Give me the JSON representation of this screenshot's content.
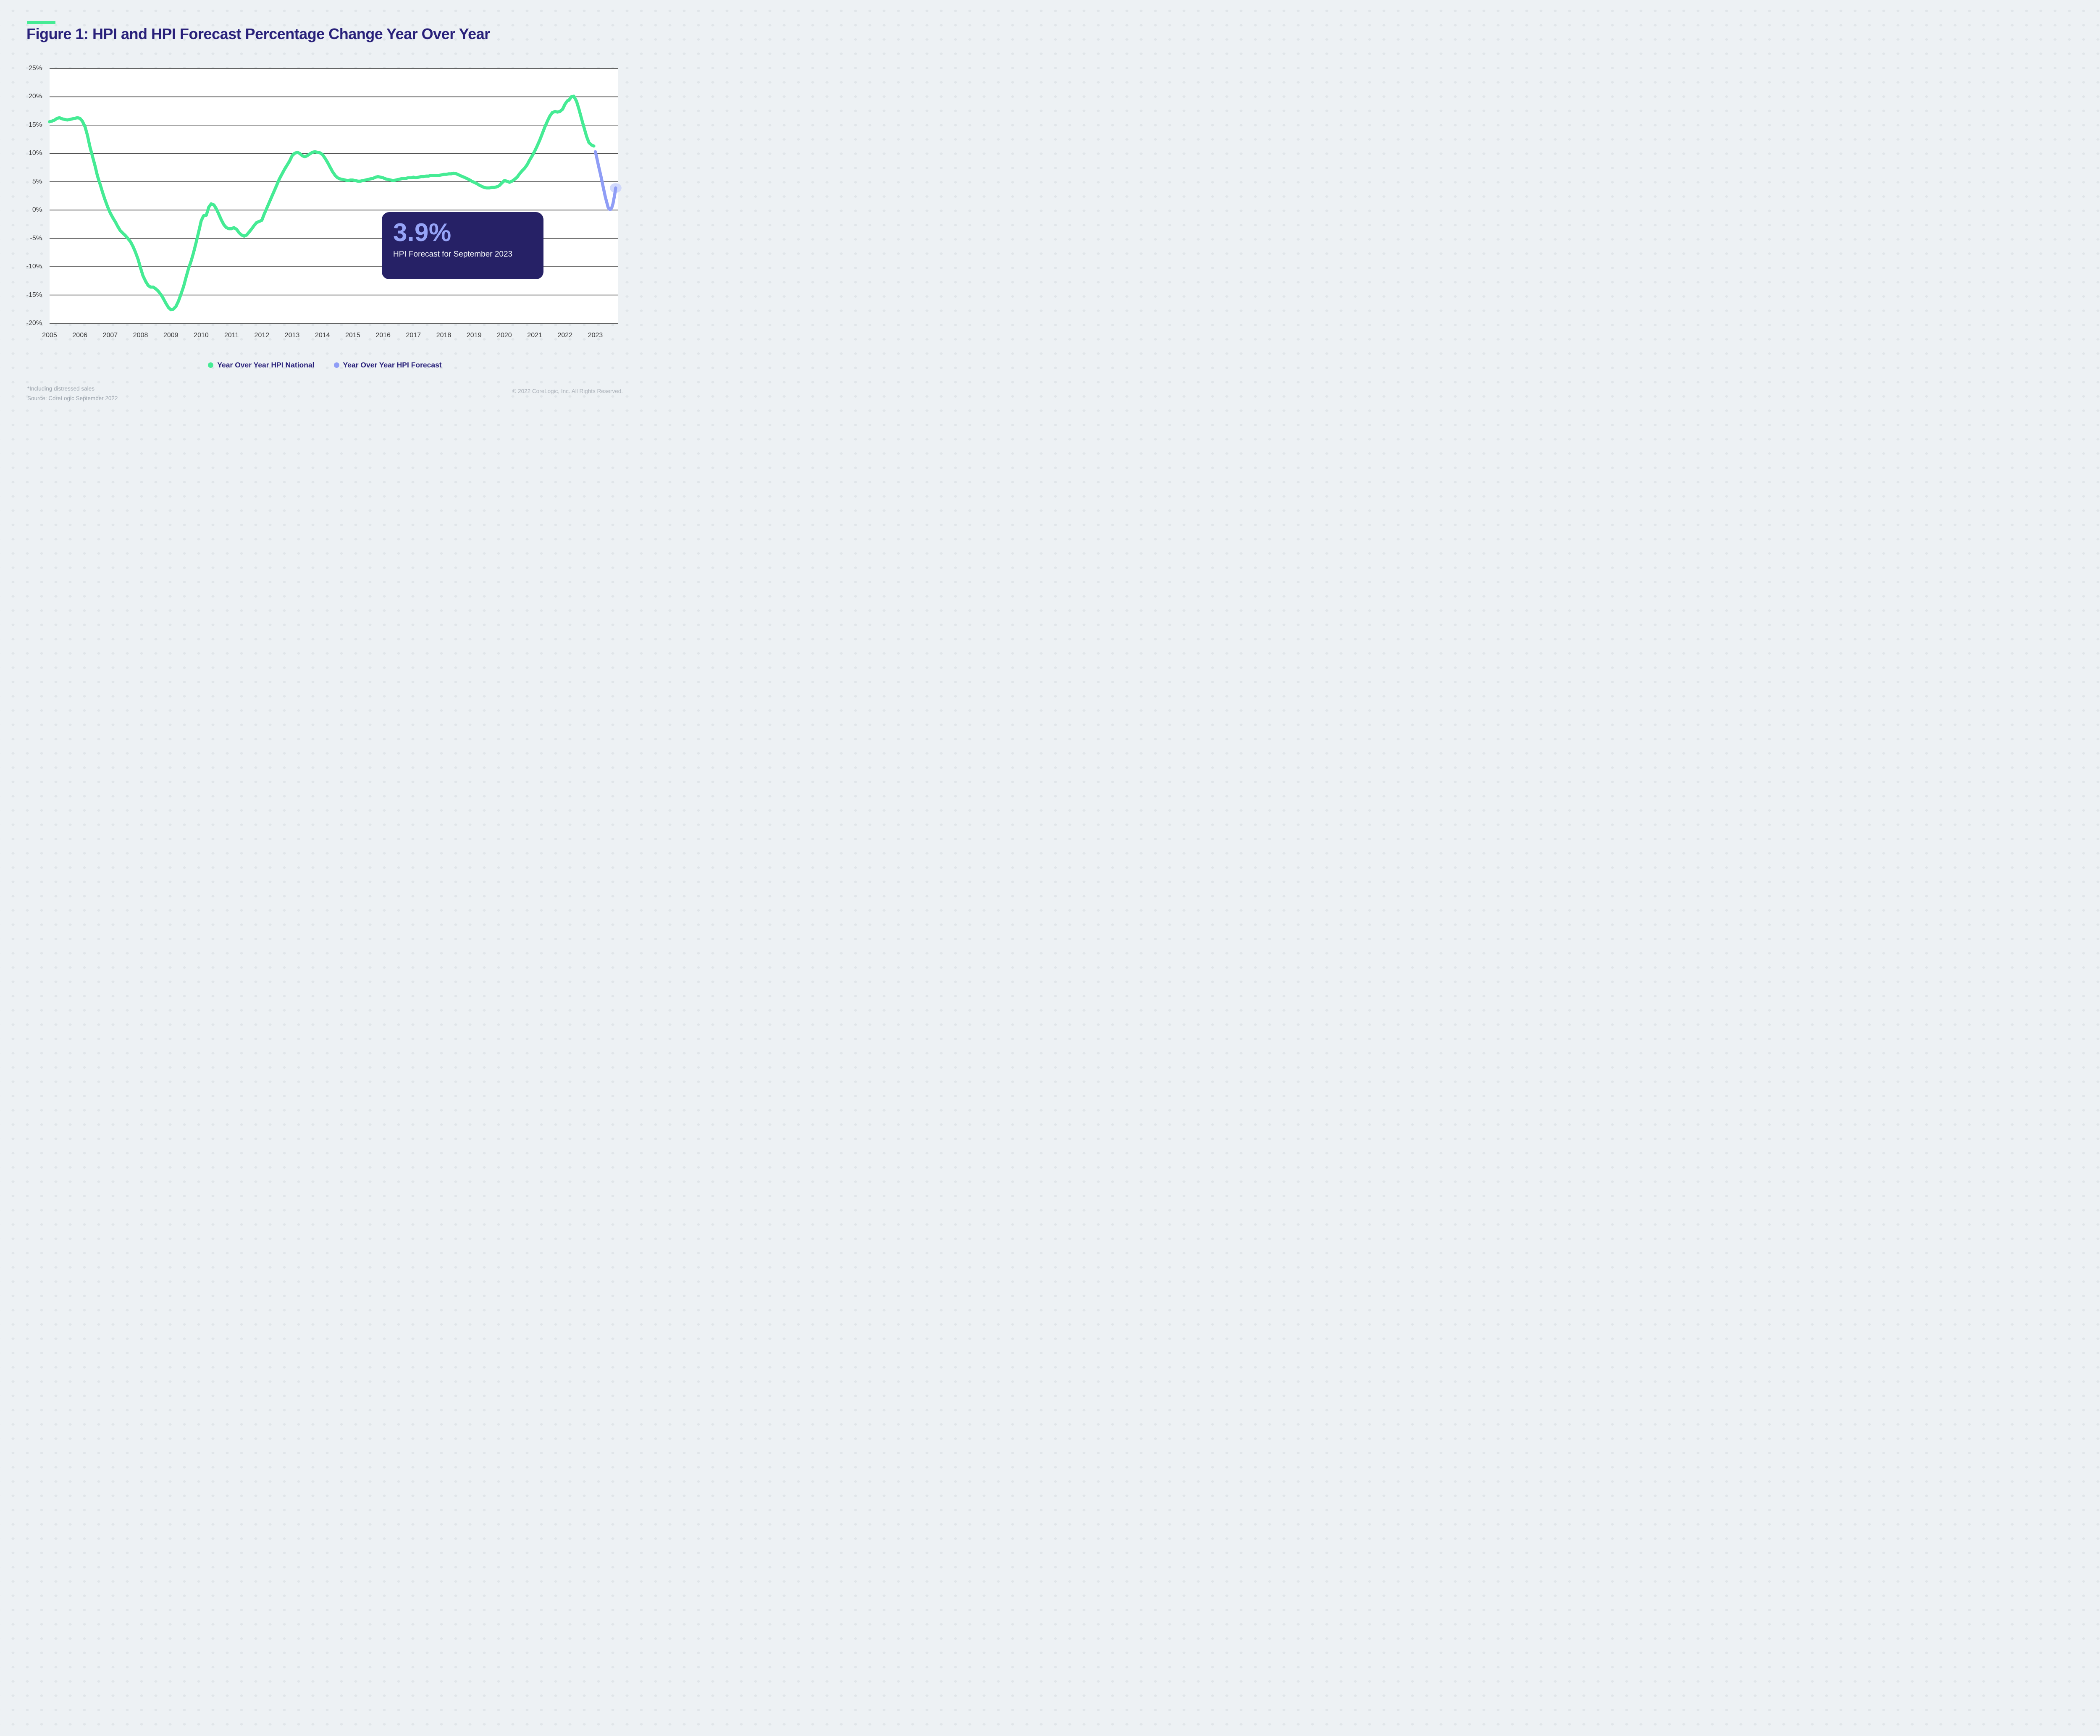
{
  "page": {
    "title": "Figure 1: HPI and HPI Forecast Percentage Change Year Over Year",
    "footnote_line1": "*Including distressed sales",
    "footnote_line2": "Source: CoreLogic September 2022",
    "copyright": "© 2022 CoreLogic, Inc. All Rights Reserved."
  },
  "callout": {
    "value": "3.9%",
    "label": "HPI Forecast for September 2023"
  },
  "legend": [
    {
      "label": "Year Over Year HPI National",
      "color": "#45EB94"
    },
    {
      "label": "Year Over Year HPI Forecast",
      "color": "#8F9DF6"
    }
  ],
  "colors": {
    "accent_green": "#45EB94",
    "forecast_purple": "#8F9DF6",
    "halo": "#C9D2FB",
    "navy": "#29217A",
    "callout_bg": "#262166",
    "callout_value": "#96A4F7",
    "gridline": "#4F4F4F",
    "axis_text": "#3B3B3C",
    "page_bg": "#EDF1F4",
    "dot": "#E0E5E9",
    "plot_bg": "#FFFFFF",
    "footnote": "#9BA3AC",
    "copyright": "#ABB1B9"
  },
  "chart_data": {
    "type": "line",
    "title": "Figure 1: HPI and HPI Forecast Percentage Change Year Over Year",
    "xlabel": "",
    "ylabel": "",
    "xlim": [
      2005,
      2023.755
    ],
    "ylim": [
      -20,
      25
    ],
    "grid": "horizontal",
    "legend_position": "bottom",
    "y_ticks": [
      {
        "v": 25,
        "label": "25%"
      },
      {
        "v": 20,
        "label": "20%"
      },
      {
        "v": 15,
        "label": "15%"
      },
      {
        "v": 10,
        "label": "10%"
      },
      {
        "v": 5,
        "label": "5%"
      },
      {
        "v": 0,
        "label": "0%"
      },
      {
        "v": -5,
        "label": "-5%"
      },
      {
        "v": -10,
        "label": "-10%"
      },
      {
        "v": -15,
        "label": "-15%"
      },
      {
        "v": -20,
        "label": "-20%"
      }
    ],
    "x_ticks": [
      {
        "year": 2005,
        "label": "2005"
      },
      {
        "year": 2006,
        "label": "2006"
      },
      {
        "year": 2007,
        "label": "2007"
      },
      {
        "year": 2008,
        "label": "2008"
      },
      {
        "year": 2009,
        "label": "2009"
      },
      {
        "year": 2010,
        "label": "2010"
      },
      {
        "year": 2011,
        "label": "2011"
      },
      {
        "year": 2012,
        "label": "2012"
      },
      {
        "year": 2013,
        "label": "2013"
      },
      {
        "year": 2014,
        "label": "2014"
      },
      {
        "year": 2015,
        "label": "2015"
      },
      {
        "year": 2016,
        "label": "2016"
      },
      {
        "year": 2017,
        "label": "2017"
      },
      {
        "year": 2018,
        "label": "2018"
      },
      {
        "year": 2019,
        "label": "2019"
      },
      {
        "year": 2020,
        "label": "2020"
      },
      {
        "year": 2021,
        "label": "2021"
      },
      {
        "year": 2022,
        "label": "2022"
      },
      {
        "year": 2023,
        "label": "2023"
      }
    ],
    "annotation": {
      "value": "3.9%",
      "label": "HPI Forecast for September 2023"
    },
    "series": [
      {
        "name": "Year Over Year HPI National",
        "color": "#45EB94",
        "end_marker": false,
        "points": [
          [
            2005.0,
            15.6
          ],
          [
            2005.08,
            15.7
          ],
          [
            2005.17,
            15.9
          ],
          [
            2005.25,
            16.2
          ],
          [
            2005.33,
            16.3
          ],
          [
            2005.42,
            16.1
          ],
          [
            2005.5,
            16.0
          ],
          [
            2005.58,
            15.9
          ],
          [
            2005.67,
            16.0
          ],
          [
            2005.75,
            16.1
          ],
          [
            2005.83,
            16.2
          ],
          [
            2005.92,
            16.3
          ],
          [
            2006.0,
            16.2
          ],
          [
            2006.08,
            15.7
          ],
          [
            2006.17,
            14.7
          ],
          [
            2006.25,
            13.2
          ],
          [
            2006.33,
            11.2
          ],
          [
            2006.42,
            9.4
          ],
          [
            2006.5,
            7.8
          ],
          [
            2006.58,
            6.0
          ],
          [
            2006.67,
            4.5
          ],
          [
            2006.75,
            3.1
          ],
          [
            2006.83,
            1.8
          ],
          [
            2006.92,
            0.5
          ],
          [
            2007.0,
            -0.5
          ],
          [
            2007.08,
            -1.3
          ],
          [
            2007.17,
            -2.1
          ],
          [
            2007.25,
            -2.9
          ],
          [
            2007.33,
            -3.6
          ],
          [
            2007.42,
            -4.1
          ],
          [
            2007.5,
            -4.5
          ],
          [
            2007.58,
            -5.0
          ],
          [
            2007.67,
            -5.6
          ],
          [
            2007.75,
            -6.4
          ],
          [
            2007.83,
            -7.4
          ],
          [
            2007.92,
            -8.7
          ],
          [
            2008.0,
            -10.2
          ],
          [
            2008.08,
            -11.6
          ],
          [
            2008.17,
            -12.6
          ],
          [
            2008.25,
            -13.3
          ],
          [
            2008.33,
            -13.6
          ],
          [
            2008.42,
            -13.6
          ],
          [
            2008.5,
            -13.9
          ],
          [
            2008.58,
            -14.3
          ],
          [
            2008.67,
            -14.9
          ],
          [
            2008.75,
            -15.6
          ],
          [
            2008.83,
            -16.4
          ],
          [
            2008.92,
            -17.2
          ],
          [
            2009.0,
            -17.6
          ],
          [
            2009.08,
            -17.5
          ],
          [
            2009.17,
            -17.0
          ],
          [
            2009.25,
            -16.1
          ],
          [
            2009.33,
            -14.9
          ],
          [
            2009.42,
            -13.5
          ],
          [
            2009.5,
            -11.9
          ],
          [
            2009.58,
            -10.4
          ],
          [
            2009.67,
            -9.0
          ],
          [
            2009.75,
            -7.5
          ],
          [
            2009.83,
            -5.8
          ],
          [
            2009.92,
            -3.8
          ],
          [
            2010.0,
            -1.9
          ],
          [
            2010.08,
            -1.0
          ],
          [
            2010.17,
            -0.9
          ],
          [
            2010.25,
            0.5
          ],
          [
            2010.33,
            1.1
          ],
          [
            2010.42,
            0.9
          ],
          [
            2010.5,
            0.2
          ],
          [
            2010.58,
            -0.7
          ],
          [
            2010.67,
            -1.8
          ],
          [
            2010.75,
            -2.6
          ],
          [
            2010.83,
            -3.1
          ],
          [
            2010.92,
            -3.3
          ],
          [
            2011.0,
            -3.3
          ],
          [
            2011.08,
            -3.1
          ],
          [
            2011.17,
            -3.4
          ],
          [
            2011.25,
            -4.0
          ],
          [
            2011.33,
            -4.4
          ],
          [
            2011.42,
            -4.6
          ],
          [
            2011.5,
            -4.4
          ],
          [
            2011.58,
            -3.9
          ],
          [
            2011.67,
            -3.3
          ],
          [
            2011.75,
            -2.7
          ],
          [
            2011.83,
            -2.2
          ],
          [
            2011.92,
            -2.0
          ],
          [
            2012.0,
            -1.8
          ],
          [
            2012.08,
            -0.7
          ],
          [
            2012.17,
            0.4
          ],
          [
            2012.25,
            1.4
          ],
          [
            2012.33,
            2.4
          ],
          [
            2012.42,
            3.5
          ],
          [
            2012.5,
            4.5
          ],
          [
            2012.58,
            5.5
          ],
          [
            2012.67,
            6.4
          ],
          [
            2012.75,
            7.2
          ],
          [
            2012.83,
            7.9
          ],
          [
            2012.92,
            8.7
          ],
          [
            2013.0,
            9.6
          ],
          [
            2013.08,
            10.0
          ],
          [
            2013.17,
            10.2
          ],
          [
            2013.25,
            10.0
          ],
          [
            2013.33,
            9.6
          ],
          [
            2013.42,
            9.4
          ],
          [
            2013.5,
            9.6
          ],
          [
            2013.58,
            9.9
          ],
          [
            2013.67,
            10.2
          ],
          [
            2013.75,
            10.3
          ],
          [
            2013.83,
            10.2
          ],
          [
            2013.92,
            10.1
          ],
          [
            2014.0,
            9.8
          ],
          [
            2014.08,
            9.2
          ],
          [
            2014.17,
            8.4
          ],
          [
            2014.25,
            7.6
          ],
          [
            2014.33,
            6.8
          ],
          [
            2014.42,
            6.1
          ],
          [
            2014.5,
            5.7
          ],
          [
            2014.58,
            5.5
          ],
          [
            2014.67,
            5.4
          ],
          [
            2014.75,
            5.3
          ],
          [
            2014.83,
            5.2
          ],
          [
            2014.92,
            5.3
          ],
          [
            2015.0,
            5.3
          ],
          [
            2015.08,
            5.2
          ],
          [
            2015.17,
            5.1
          ],
          [
            2015.25,
            5.1
          ],
          [
            2015.33,
            5.2
          ],
          [
            2015.42,
            5.3
          ],
          [
            2015.5,
            5.4
          ],
          [
            2015.58,
            5.5
          ],
          [
            2015.67,
            5.6
          ],
          [
            2015.75,
            5.8
          ],
          [
            2015.83,
            5.9
          ],
          [
            2015.92,
            5.8
          ],
          [
            2016.0,
            5.7
          ],
          [
            2016.08,
            5.5
          ],
          [
            2016.17,
            5.4
          ],
          [
            2016.25,
            5.3
          ],
          [
            2016.33,
            5.2
          ],
          [
            2016.42,
            5.3
          ],
          [
            2016.5,
            5.4
          ],
          [
            2016.58,
            5.5
          ],
          [
            2016.67,
            5.6
          ],
          [
            2016.75,
            5.6
          ],
          [
            2016.83,
            5.7
          ],
          [
            2016.92,
            5.7
          ],
          [
            2017.0,
            5.8
          ],
          [
            2017.08,
            5.7
          ],
          [
            2017.17,
            5.8
          ],
          [
            2017.25,
            5.9
          ],
          [
            2017.33,
            5.9
          ],
          [
            2017.42,
            6.0
          ],
          [
            2017.5,
            6.0
          ],
          [
            2017.58,
            6.1
          ],
          [
            2017.67,
            6.1
          ],
          [
            2017.75,
            6.1
          ],
          [
            2017.83,
            6.1
          ],
          [
            2017.92,
            6.2
          ],
          [
            2018.0,
            6.3
          ],
          [
            2018.08,
            6.3
          ],
          [
            2018.17,
            6.4
          ],
          [
            2018.25,
            6.4
          ],
          [
            2018.33,
            6.5
          ],
          [
            2018.42,
            6.4
          ],
          [
            2018.5,
            6.2
          ],
          [
            2018.58,
            6.0
          ],
          [
            2018.67,
            5.8
          ],
          [
            2018.75,
            5.6
          ],
          [
            2018.83,
            5.4
          ],
          [
            2018.92,
            5.1
          ],
          [
            2019.0,
            4.9
          ],
          [
            2019.08,
            4.7
          ],
          [
            2019.17,
            4.4
          ],
          [
            2019.25,
            4.2
          ],
          [
            2019.33,
            4.0
          ],
          [
            2019.42,
            3.9
          ],
          [
            2019.5,
            3.9
          ],
          [
            2019.58,
            4.0
          ],
          [
            2019.67,
            4.0
          ],
          [
            2019.75,
            4.1
          ],
          [
            2019.83,
            4.3
          ],
          [
            2019.92,
            4.8
          ],
          [
            2020.0,
            5.2
          ],
          [
            2020.08,
            5.1
          ],
          [
            2020.17,
            4.9
          ],
          [
            2020.25,
            5.1
          ],
          [
            2020.33,
            5.4
          ],
          [
            2020.42,
            5.8
          ],
          [
            2020.5,
            6.4
          ],
          [
            2020.58,
            6.9
          ],
          [
            2020.67,
            7.4
          ],
          [
            2020.75,
            8.0
          ],
          [
            2020.83,
            8.8
          ],
          [
            2020.92,
            9.6
          ],
          [
            2021.0,
            10.4
          ],
          [
            2021.08,
            11.3
          ],
          [
            2021.17,
            12.4
          ],
          [
            2021.25,
            13.5
          ],
          [
            2021.33,
            14.6
          ],
          [
            2021.42,
            15.7
          ],
          [
            2021.5,
            16.6
          ],
          [
            2021.58,
            17.2
          ],
          [
            2021.67,
            17.4
          ],
          [
            2021.75,
            17.3
          ],
          [
            2021.83,
            17.4
          ],
          [
            2021.92,
            17.8
          ],
          [
            2022.0,
            18.7
          ],
          [
            2022.08,
            19.3
          ],
          [
            2022.13,
            19.4
          ],
          [
            2022.21,
            20.0
          ],
          [
            2022.29,
            20.1
          ],
          [
            2022.38,
            19.2
          ],
          [
            2022.46,
            17.8
          ],
          [
            2022.54,
            16.2
          ],
          [
            2022.63,
            14.5
          ],
          [
            2022.71,
            13.0
          ],
          [
            2022.79,
            11.9
          ],
          [
            2022.87,
            11.5
          ],
          [
            2022.95,
            11.3
          ]
        ]
      },
      {
        "name": "Year Over Year HPI Forecast",
        "color": "#8F9DF6",
        "end_marker": true,
        "points": [
          [
            2023.0,
            10.3
          ],
          [
            2023.04,
            9.4
          ],
          [
            2023.08,
            8.4
          ],
          [
            2023.13,
            7.2
          ],
          [
            2023.17,
            6.3
          ],
          [
            2023.21,
            5.3
          ],
          [
            2023.25,
            4.3
          ],
          [
            2023.29,
            3.3
          ],
          [
            2023.33,
            2.3
          ],
          [
            2023.38,
            1.3
          ],
          [
            2023.42,
            0.5
          ],
          [
            2023.46,
            0.15
          ],
          [
            2023.5,
            0.1
          ],
          [
            2023.54,
            0.4
          ],
          [
            2023.58,
            1.1
          ],
          [
            2023.61,
            1.9
          ],
          [
            2023.64,
            2.8
          ],
          [
            2023.66,
            3.5
          ],
          [
            2023.67,
            3.9
          ]
        ]
      }
    ]
  }
}
